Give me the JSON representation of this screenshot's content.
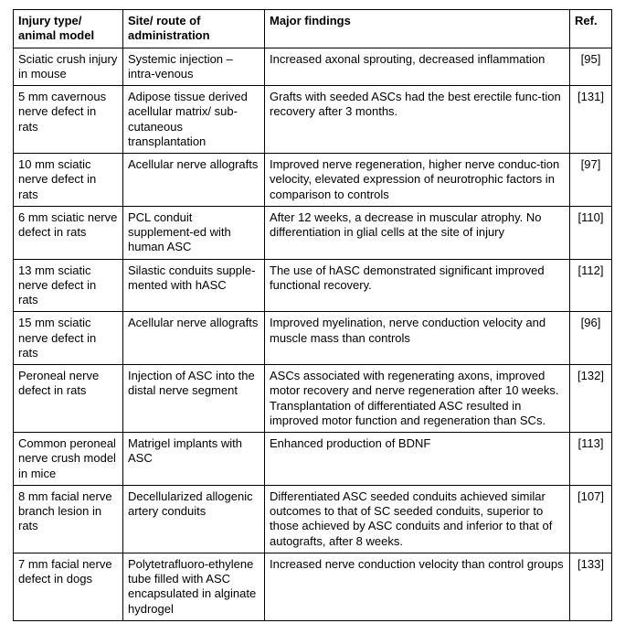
{
  "table": {
    "columns": [
      "Injury type/ animal model",
      "Site/ route of administration",
      "Major findings",
      "Ref."
    ],
    "rows": [
      {
        "model": "Sciatic crush injury in mouse",
        "site": "Systemic injection – intra-venous",
        "findings": "Increased axonal sprouting, decreased inflammation",
        "ref": "[95]"
      },
      {
        "model": "5 mm cavernous nerve defect in rats",
        "site": "Adipose tissue derived acellular matrix/ sub-cutaneous transplantation",
        "findings": "Grafts with seeded ASCs had the best erectile func-tion recovery after 3 months.",
        "ref": "[131]"
      },
      {
        "model": "10 mm sciatic nerve defect in rats",
        "site": "Acellular nerve allografts",
        "findings": "Improved nerve regeneration, higher nerve conduc-tion velocity, elevated expression of neurotrophic factors in comparison to controls",
        "ref": "[97]"
      },
      {
        "model": "6 mm sciatic nerve defect in rats",
        "site": "PCL conduit supplement-ed with human ASC",
        "findings": "After 12 weeks, a decrease in muscular atrophy. No differentiation in glial cells at the site of injury",
        "ref": "[110]"
      },
      {
        "model": "13 mm sciatic nerve defect in rats",
        "site": "Silastic conduits supple-mented with hASC",
        "findings": "The use of hASC demonstrated significant improved functional recovery.",
        "ref": "[112]"
      },
      {
        "model": "15 mm sciatic nerve defect in rats",
        "site": "Acellular nerve allografts",
        "findings": "Improved myelination, nerve conduction velocity and muscle mass than controls",
        "ref": "[96]"
      },
      {
        "model": "Peroneal nerve defect in rats",
        "site": "Injection of ASC into the distal nerve segment",
        "findings": "ASCs associated with regenerating axons, improved motor recovery and nerve regeneration after 10 weeks. Transplantation of differentiated ASC resulted in improved motor function and regeneration than SCs.",
        "ref": "[132]"
      },
      {
        "model": "Common peroneal nerve crush model in mice",
        "site": "Matrigel implants with ASC",
        "findings": "Enhanced production of BDNF",
        "ref": "[113]"
      },
      {
        "model": "8 mm facial nerve branch lesion in rats",
        "site": "Decellularized allogenic artery conduits",
        "findings": "Differentiated ASC seeded conduits achieved similar outcomes to that of SC seeded conduits, superior to those achieved by ASC conduits and inferior to that of autografts, after 8 weeks.",
        "ref": "[107]"
      },
      {
        "model": "7 mm facial nerve defect in dogs",
        "site": "Polytetrafluoro-ethylene tube filled with ASC encapsulated in alginate hydrogel",
        "findings": "Increased nerve conduction velocity than control groups",
        "ref": "[133]"
      }
    ]
  }
}
